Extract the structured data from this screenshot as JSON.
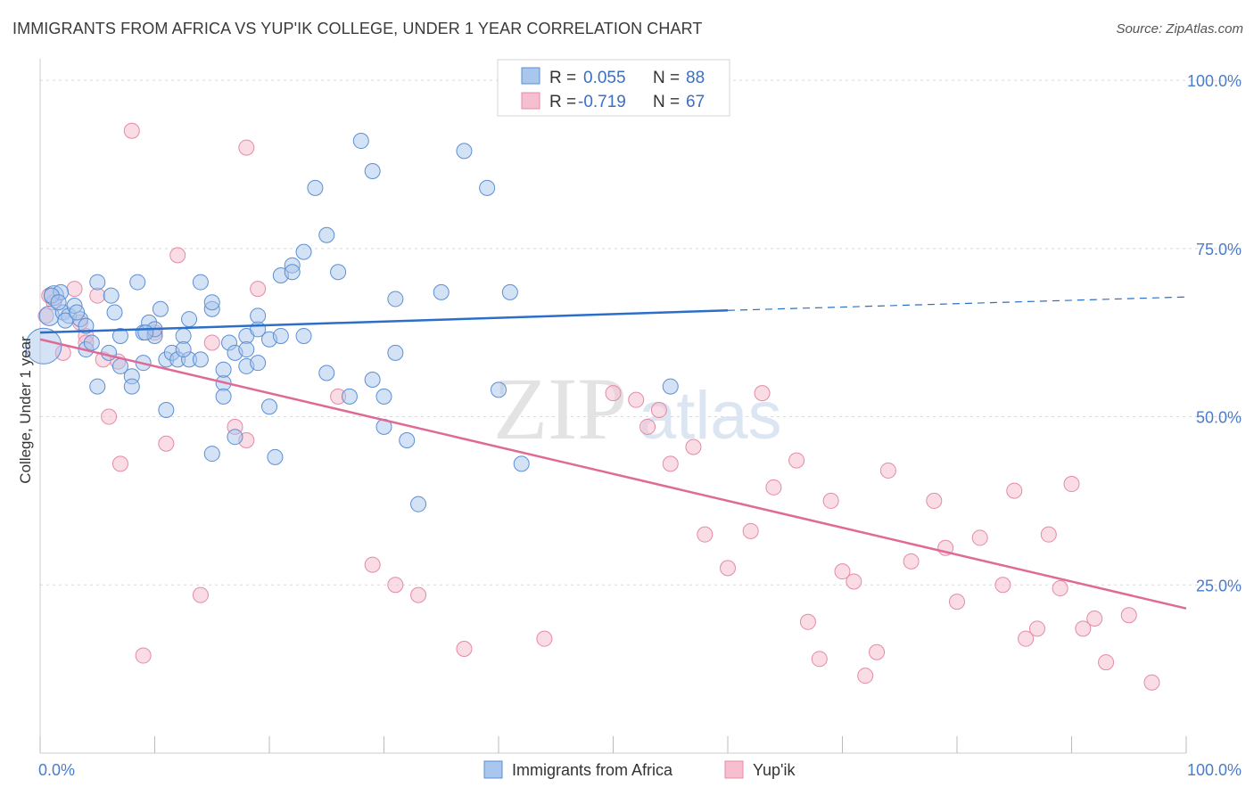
{
  "header": {
    "title": "IMMIGRANTS FROM AFRICA VS YUP'IK COLLEGE, UNDER 1 YEAR CORRELATION CHART",
    "source": "Source: ZipAtlas.com"
  },
  "watermark": {
    "zip": "ZIP",
    "atlas": "atlas"
  },
  "legend": {
    "rows": [
      {
        "r_label": "R =",
        "r_value": "0.055",
        "n_label": "N =",
        "n_value": "88"
      },
      {
        "r_label": "R =",
        "r_value": "-0.719",
        "n_label": "N =",
        "n_value": "67"
      }
    ]
  },
  "colors": {
    "blue_fill": "#a9c6ec",
    "blue_stroke": "#5b8fd4",
    "blue_line": "#2c6fc9",
    "pink_fill": "#f6bfd0",
    "pink_stroke": "#e58aa8",
    "pink_line": "#e06a96",
    "grid": "#d9d9d9",
    "tick_text": "#4a7cc9"
  },
  "chart_data": {
    "type": "scatter",
    "title": "IMMIGRANTS FROM AFRICA VS YUP'IK COLLEGE, UNDER 1 YEAR CORRELATION CHART",
    "xlabel": "",
    "ylabel": "College, Under 1 year",
    "xlim": [
      0,
      100
    ],
    "ylim": [
      0,
      102
    ],
    "x_tick_labels": [
      "0.0%",
      "100.0%"
    ],
    "y_ticks": [
      25,
      50,
      75,
      100
    ],
    "y_tick_labels": [
      "25.0%",
      "50.0%",
      "75.0%",
      "100.0%"
    ],
    "grid": true,
    "legend_placement": "top-center",
    "series": [
      {
        "name": "Immigrants from Africa",
        "r": 0.055,
        "n": 88,
        "trend": {
          "x0": 0,
          "y0": 62.5,
          "x1": 60,
          "y1": 65.8,
          "dashed_to_x": 100,
          "dashed_to_y": 67.8
        },
        "points": [
          [
            0.3,
            60.5
          ],
          [
            0.8,
            65
          ],
          [
            1.2,
            68
          ],
          [
            1.8,
            68.5
          ],
          [
            2,
            65.5
          ],
          [
            2.5,
            65
          ],
          [
            3,
            66.5
          ],
          [
            3.5,
            64.5
          ],
          [
            4,
            63.5
          ],
          [
            4,
            60
          ],
          [
            4.5,
            61
          ],
          [
            5,
            70
          ],
          [
            5,
            54.5
          ],
          [
            6.5,
            65.5
          ],
          [
            6,
            59.5
          ],
          [
            7,
            57.5
          ],
          [
            7,
            62
          ],
          [
            8,
            56
          ],
          [
            8,
            54.5
          ],
          [
            8.5,
            70
          ],
          [
            9,
            58
          ],
          [
            9,
            62.5
          ],
          [
            9.5,
            64
          ],
          [
            10,
            62
          ],
          [
            10.5,
            66
          ],
          [
            10,
            63
          ],
          [
            11,
            58.5
          ],
          [
            11,
            51
          ],
          [
            11.5,
            59.5
          ],
          [
            12,
            58.5
          ],
          [
            13,
            64.5
          ],
          [
            12.5,
            62
          ],
          [
            13,
            58.5
          ],
          [
            14,
            70
          ],
          [
            14,
            58.5
          ],
          [
            15,
            66
          ],
          [
            15,
            67
          ],
          [
            15,
            44.5
          ],
          [
            16,
            55
          ],
          [
            16,
            57
          ],
          [
            16.5,
            61
          ],
          [
            16,
            53
          ],
          [
            17,
            59.5
          ],
          [
            17,
            47
          ],
          [
            18,
            57.5
          ],
          [
            18,
            62
          ],
          [
            18,
            60
          ],
          [
            19,
            63
          ],
          [
            19,
            65
          ],
          [
            19,
            58
          ],
          [
            20,
            61.5
          ],
          [
            20,
            51.5
          ],
          [
            20.5,
            44
          ],
          [
            21,
            71
          ],
          [
            21,
            62
          ],
          [
            22,
            72.5
          ],
          [
            22,
            71.5
          ],
          [
            23,
            62
          ],
          [
            23,
            74.5
          ],
          [
            24,
            84
          ],
          [
            25,
            56.5
          ],
          [
            25,
            77
          ],
          [
            26,
            71.5
          ],
          [
            27,
            53
          ],
          [
            28,
            91
          ],
          [
            29,
            86.5
          ],
          [
            29,
            55.5
          ],
          [
            30,
            48.5
          ],
          [
            30,
            53
          ],
          [
            31,
            59.5
          ],
          [
            31,
            67.5
          ],
          [
            32,
            46.5
          ],
          [
            33,
            37
          ],
          [
            35,
            68.5
          ],
          [
            37,
            89.5
          ],
          [
            39,
            84
          ],
          [
            40,
            54
          ],
          [
            41,
            68.5
          ],
          [
            42,
            43
          ],
          [
            47,
            99.5
          ],
          [
            55,
            54.5
          ],
          [
            1,
            68
          ],
          [
            2.2,
            64.3
          ],
          [
            1.6,
            67
          ],
          [
            3.2,
            65.5
          ],
          [
            6.2,
            68
          ],
          [
            9.2,
            62.5
          ],
          [
            12.5,
            60
          ]
        ]
      },
      {
        "name": "Yup'ik",
        "r": -0.719,
        "n": 67,
        "trend": {
          "x0": 0,
          "y0": 61.5,
          "x1": 100,
          "y1": 21.5
        },
        "points": [
          [
            0.5,
            65
          ],
          [
            0.8,
            68
          ],
          [
            1.2,
            67
          ],
          [
            2,
            59.5
          ],
          [
            3,
            69
          ],
          [
            4,
            62
          ],
          [
            4,
            61
          ],
          [
            5,
            68
          ],
          [
            5.5,
            58.5
          ],
          [
            6,
            50
          ],
          [
            7,
            43
          ],
          [
            8,
            92.5
          ],
          [
            9,
            14.5
          ],
          [
            10,
            62.5
          ],
          [
            11,
            46
          ],
          [
            12,
            74
          ],
          [
            14,
            23.5
          ],
          [
            15,
            61
          ],
          [
            17,
            48.5
          ],
          [
            18,
            46.5
          ],
          [
            18,
            90
          ],
          [
            19,
            69
          ],
          [
            26,
            53
          ],
          [
            29,
            28
          ],
          [
            31,
            25
          ],
          [
            33,
            23.5
          ],
          [
            37,
            15.5
          ],
          [
            44,
            17
          ],
          [
            50,
            53.5
          ],
          [
            52,
            52.5
          ],
          [
            53,
            48.5
          ],
          [
            54,
            51
          ],
          [
            55,
            43
          ],
          [
            57,
            45.5
          ],
          [
            58,
            32.5
          ],
          [
            60,
            27.5
          ],
          [
            62,
            33
          ],
          [
            63,
            53.5
          ],
          [
            64,
            39.5
          ],
          [
            66,
            43.5
          ],
          [
            67,
            19.5
          ],
          [
            68,
            14
          ],
          [
            69,
            37.5
          ],
          [
            70,
            27
          ],
          [
            71,
            25.5
          ],
          [
            72,
            11.5
          ],
          [
            73,
            15
          ],
          [
            74,
            42
          ],
          [
            76,
            28.5
          ],
          [
            78,
            37.5
          ],
          [
            79,
            30.5
          ],
          [
            80,
            22.5
          ],
          [
            82,
            32
          ],
          [
            84,
            25
          ],
          [
            85,
            39
          ],
          [
            86,
            17
          ],
          [
            87,
            18.5
          ],
          [
            88,
            32.5
          ],
          [
            89,
            24.5
          ],
          [
            90,
            40
          ],
          [
            91,
            18.5
          ],
          [
            92,
            20
          ],
          [
            93,
            13.5
          ],
          [
            95,
            20.5
          ],
          [
            97,
            10.5
          ],
          [
            3.5,
            64
          ],
          [
            6.8,
            58.2
          ]
        ]
      }
    ]
  },
  "bottom_legend": [
    {
      "label": "Immigrants from Africa"
    },
    {
      "label": "Yup'ik"
    }
  ]
}
